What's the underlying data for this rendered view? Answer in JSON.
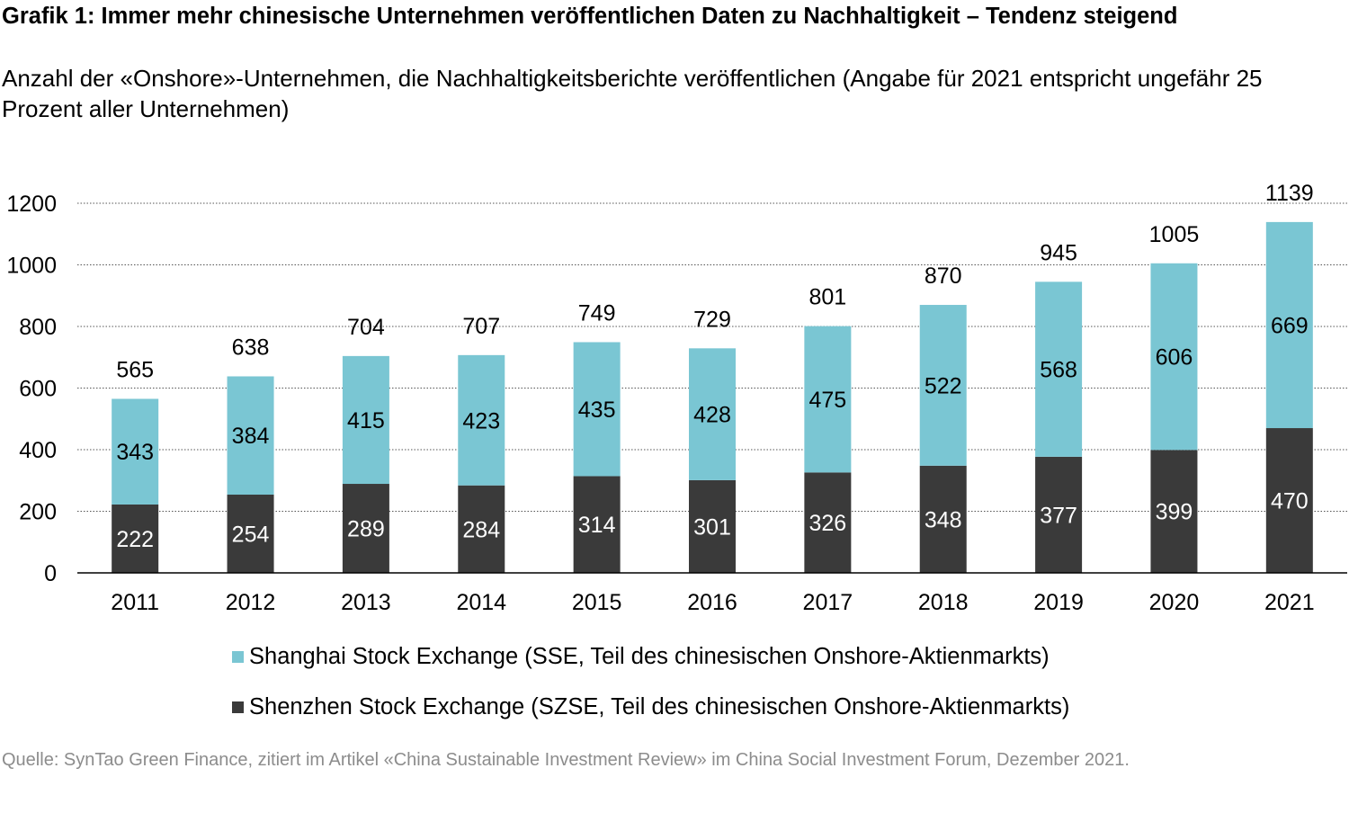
{
  "title": "Grafik 1: Immer mehr chinesische Unternehmen veröffentlichen Daten zu Nachhaltigkeit – Tendenz steigend",
  "subtitle": "Anzahl der «Onshore»-Unternehmen, die Nachhaltigkeitsberichte veröffentlichen (Angabe für 2021 entspricht ungefähr 25 Prozent aller Unternehmen)",
  "source": "Quelle: SynTao Green Finance, zitiert im Artikel «China Sustainable Investment Review» im China Social Investment Forum, Dezember 2021.",
  "chart_data": {
    "type": "bar",
    "stacked": true,
    "categories": [
      "2011",
      "2012",
      "2013",
      "2014",
      "2015",
      "2016",
      "2017",
      "2018",
      "2019",
      "2020",
      "2021"
    ],
    "series": [
      {
        "name": "Shenzhen Stock Exchange (SZSE, Teil des chinesischen Onshore-Aktienmarkts)",
        "color": "#3a3a3a",
        "values": [
          222,
          254,
          289,
          284,
          314,
          301,
          326,
          348,
          377,
          399,
          470
        ]
      },
      {
        "name": "Shanghai Stock Exchange (SSE, Teil des chinesischen Onshore-Aktienmarkts)",
        "color": "#7ac6d3",
        "values": [
          343,
          384,
          415,
          423,
          435,
          428,
          475,
          522,
          568,
          606,
          669
        ]
      }
    ],
    "totals": [
      565,
      638,
      704,
      707,
      749,
      729,
      801,
      870,
      945,
      1005,
      1139
    ],
    "yticks": [
      0,
      200,
      400,
      600,
      800,
      1000,
      1200
    ],
    "ylim": [
      0,
      1200
    ],
    "grid": "dotted horizontal",
    "legend_position": "bottom"
  }
}
